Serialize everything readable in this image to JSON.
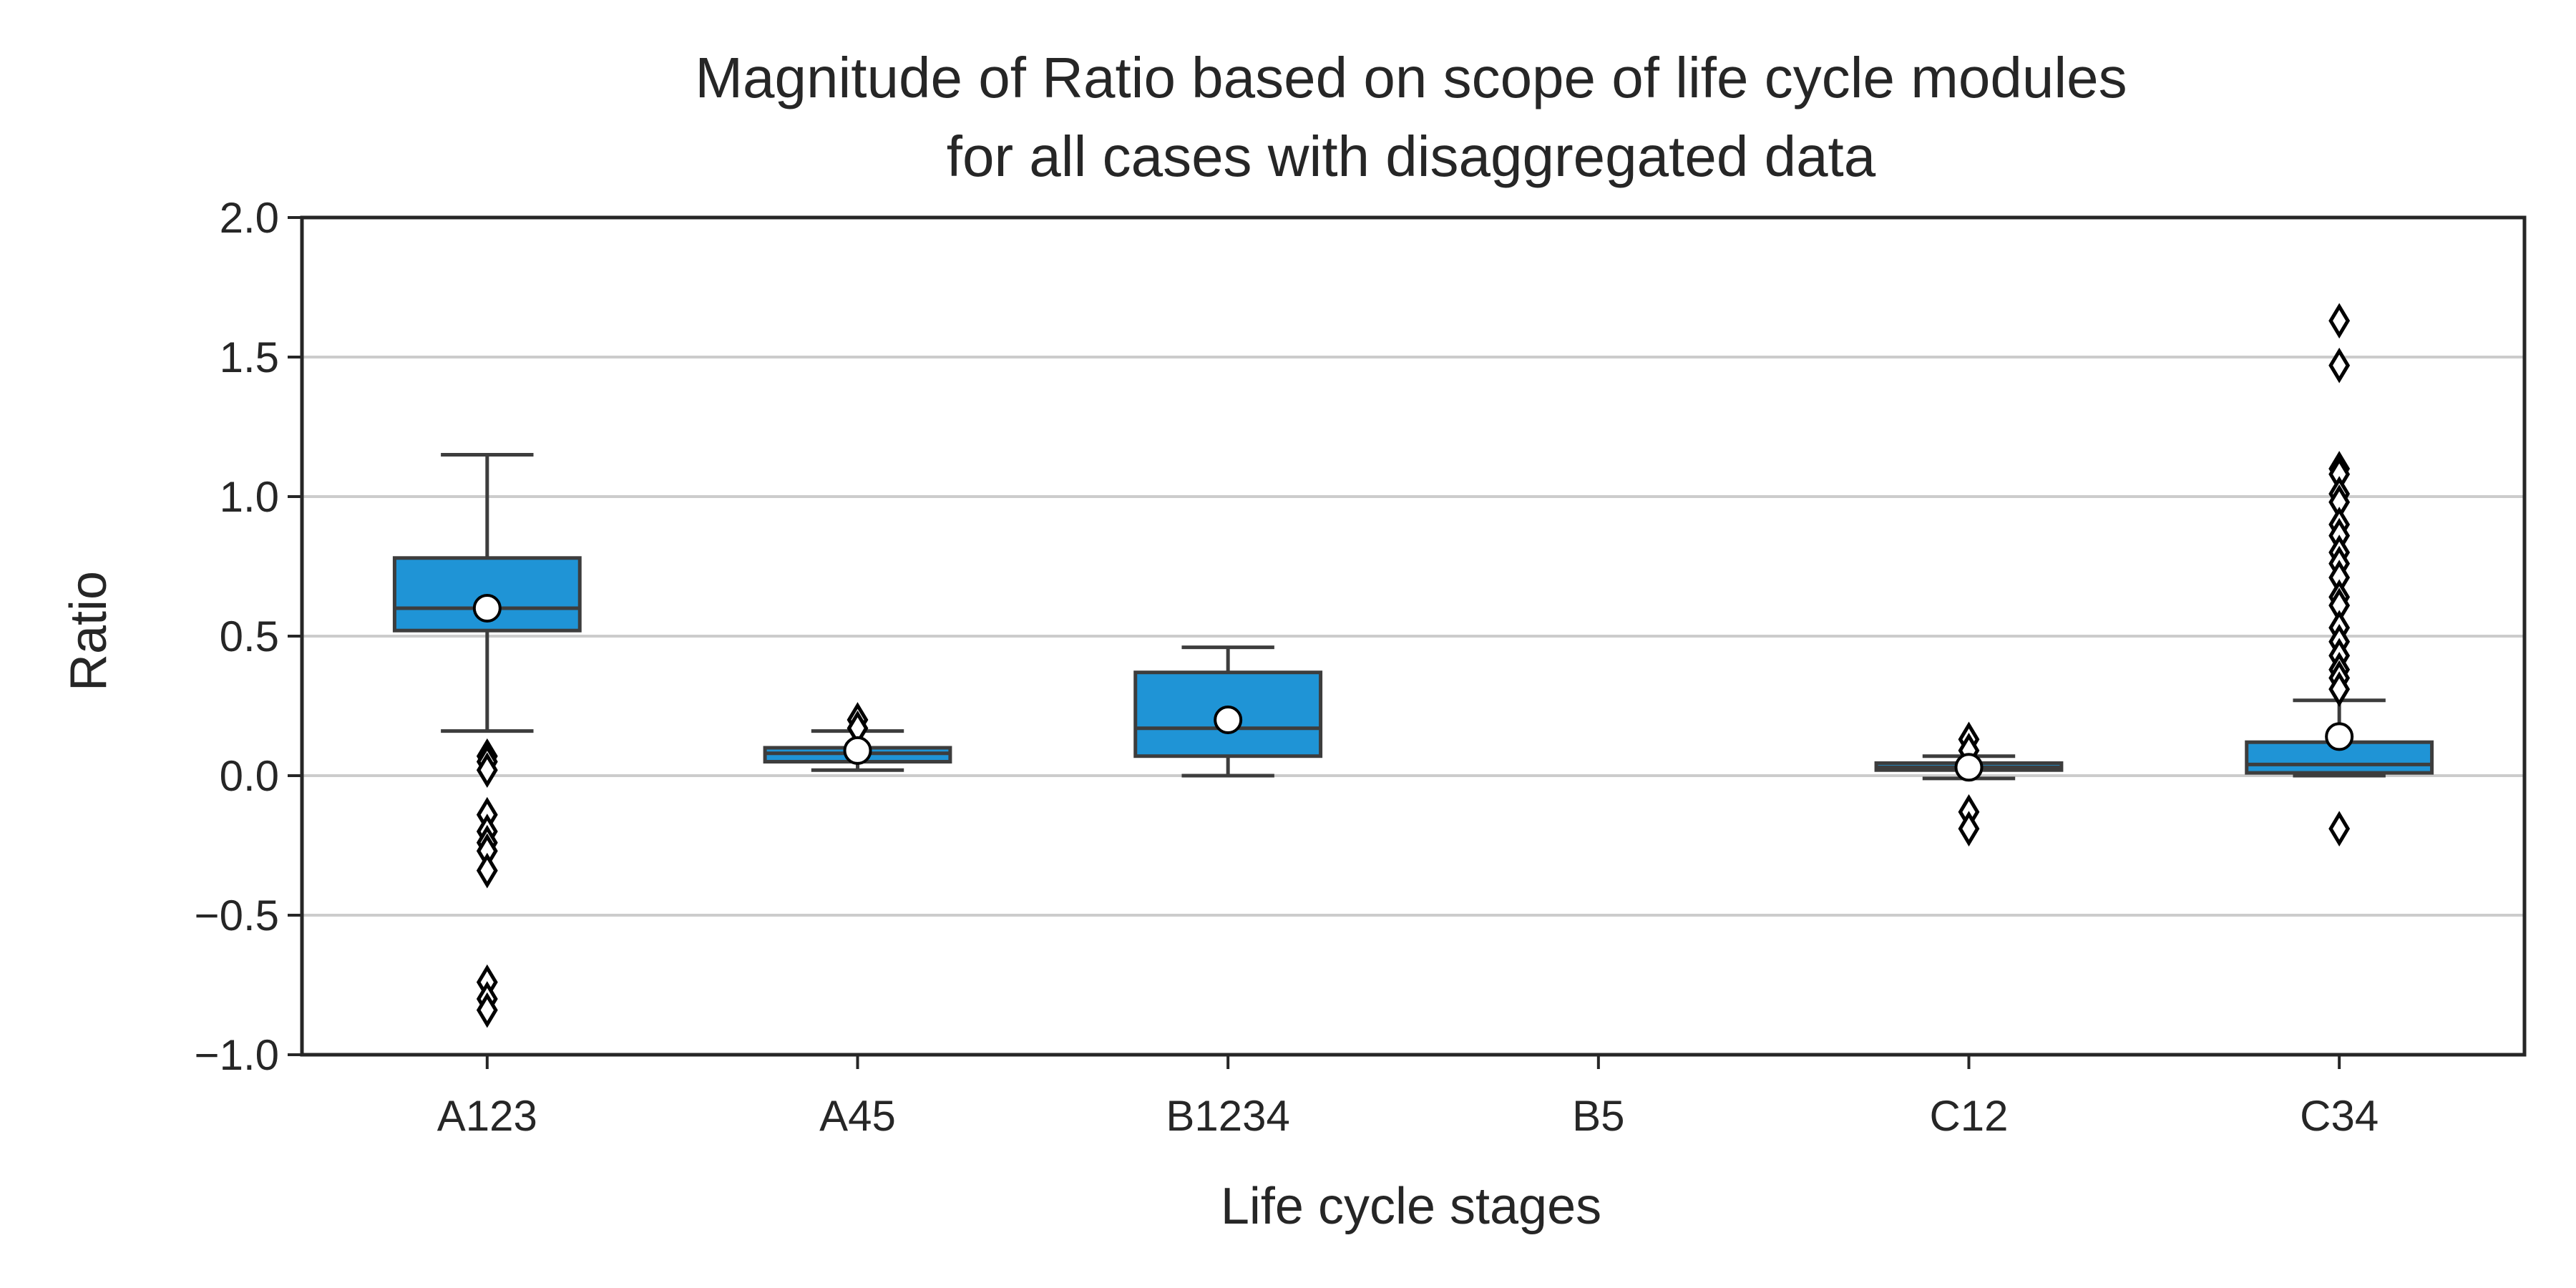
{
  "chart_data": {
    "type": "box",
    "title": [
      "Magnitude of Ratio based on scope of life cycle modules",
      "for all cases with disaggregated data"
    ],
    "xlabel": "Life cycle stages",
    "ylabel": "Ratio",
    "ylim": [
      -1.0,
      2.0
    ],
    "yticks": [
      -1.0,
      -0.5,
      0.0,
      0.5,
      1.0,
      1.5,
      2.0
    ],
    "ytick_labels": [
      "−1.0",
      "−0.5",
      "0.0",
      "0.5",
      "1.0",
      "1.5",
      "2.0"
    ],
    "grid": "horizontal",
    "colors": {
      "box_fill": "#1f94d6",
      "box_edge": "#3d3d3d",
      "gridline": "#cccccc",
      "axis": "#262626",
      "mean_fill": "#ffffff",
      "flier_edge": "#000000"
    },
    "categories": [
      "A123",
      "A45",
      "B1234",
      "B5",
      "C12",
      "C34"
    ],
    "boxes": [
      {
        "category": "A123",
        "whisker_low": 0.16,
        "q1": 0.52,
        "median": 0.6,
        "q3": 0.78,
        "whisker_high": 1.15,
        "mean": 0.6,
        "outliers": [
          0.07,
          0.05,
          0.02,
          -0.14,
          -0.2,
          -0.24,
          -0.27,
          -0.34,
          -0.74,
          -0.8,
          -0.84
        ]
      },
      {
        "category": "A45",
        "whisker_low": 0.02,
        "q1": 0.05,
        "median": 0.08,
        "q3": 0.1,
        "whisker_high": 0.16,
        "mean": 0.09,
        "outliers": [
          0.2,
          0.17
        ]
      },
      {
        "category": "B1234",
        "whisker_low": 0.0,
        "q1": 0.07,
        "median": 0.17,
        "q3": 0.37,
        "whisker_high": 0.46,
        "mean": 0.2,
        "outliers": []
      },
      {
        "category": "B5",
        "empty": true
      },
      {
        "category": "C12",
        "whisker_low": -0.01,
        "q1": 0.02,
        "median": 0.03,
        "q3": 0.045,
        "whisker_high": 0.07,
        "mean": 0.03,
        "outliers": [
          0.13,
          0.09,
          -0.13,
          -0.19
        ]
      },
      {
        "category": "C34",
        "whisker_low": 0.0,
        "q1": 0.01,
        "median": 0.04,
        "q3": 0.12,
        "whisker_high": 0.27,
        "mean": 0.14,
        "outliers": [
          1.63,
          1.47,
          1.1,
          1.08,
          1.01,
          0.98,
          0.9,
          0.86,
          0.8,
          0.76,
          0.71,
          0.64,
          0.61,
          0.53,
          0.48,
          0.43,
          0.38,
          0.35,
          0.31,
          -0.19
        ]
      }
    ]
  }
}
